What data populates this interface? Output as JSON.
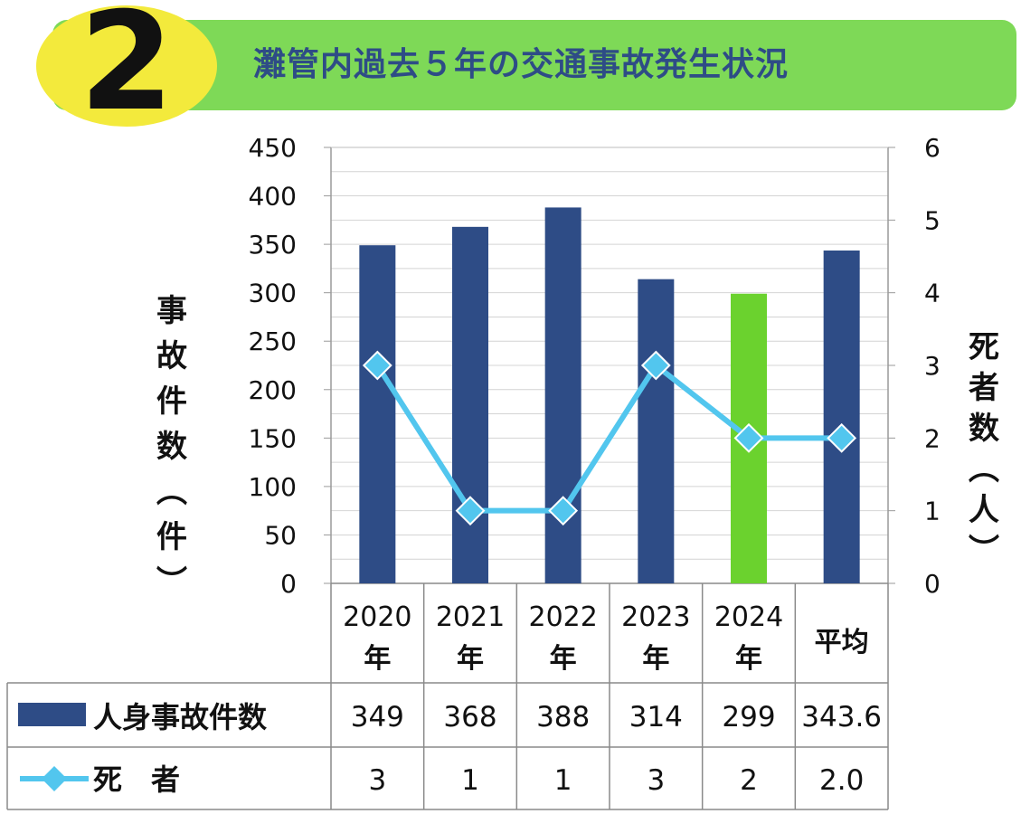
{
  "header": {
    "badge_number": "2",
    "title": "灘管内過去５年の交通事故発生状況"
  },
  "colors": {
    "bar": "#2e4c86",
    "bar_highlight": "#6bd22e",
    "line": "#52c6ee",
    "banner": "#7ed957",
    "badge": "#f3ea3c",
    "grid": "#d4d4d4"
  },
  "chart_data": {
    "type": "bar",
    "categories": [
      [
        "2020",
        "年"
      ],
      [
        "2021",
        "年"
      ],
      [
        "2022",
        "年"
      ],
      [
        "2023",
        "年"
      ],
      [
        "2024",
        "年"
      ],
      [
        "平均"
      ]
    ],
    "series": [
      {
        "name": "人身事故件数",
        "type": "bar",
        "axis": "left",
        "values": [
          349,
          368,
          388,
          314,
          299,
          343.6
        ],
        "display": [
          "349",
          "368",
          "388",
          "314",
          "299",
          "343.6"
        ],
        "highlight_index": 4
      },
      {
        "name": "死　者",
        "type": "line",
        "axis": "right",
        "values": [
          3,
          1,
          1,
          3,
          2,
          2.0
        ],
        "display": [
          "3",
          "1",
          "1",
          "3",
          "2",
          "2.0"
        ]
      }
    ],
    "y_left": {
      "label": "事故件数(件)",
      "min": 0,
      "max": 450,
      "step": 50,
      "ticks": [
        "0",
        "50",
        "100",
        "150",
        "200",
        "250",
        "300",
        "350",
        "400",
        "450"
      ]
    },
    "y_right": {
      "label": "死者数(人)",
      "min": 0,
      "max": 6,
      "step": 1,
      "ticks": [
        "0",
        "1",
        "2",
        "3",
        "4",
        "5",
        "6"
      ]
    },
    "grid": true,
    "data_table": true
  }
}
